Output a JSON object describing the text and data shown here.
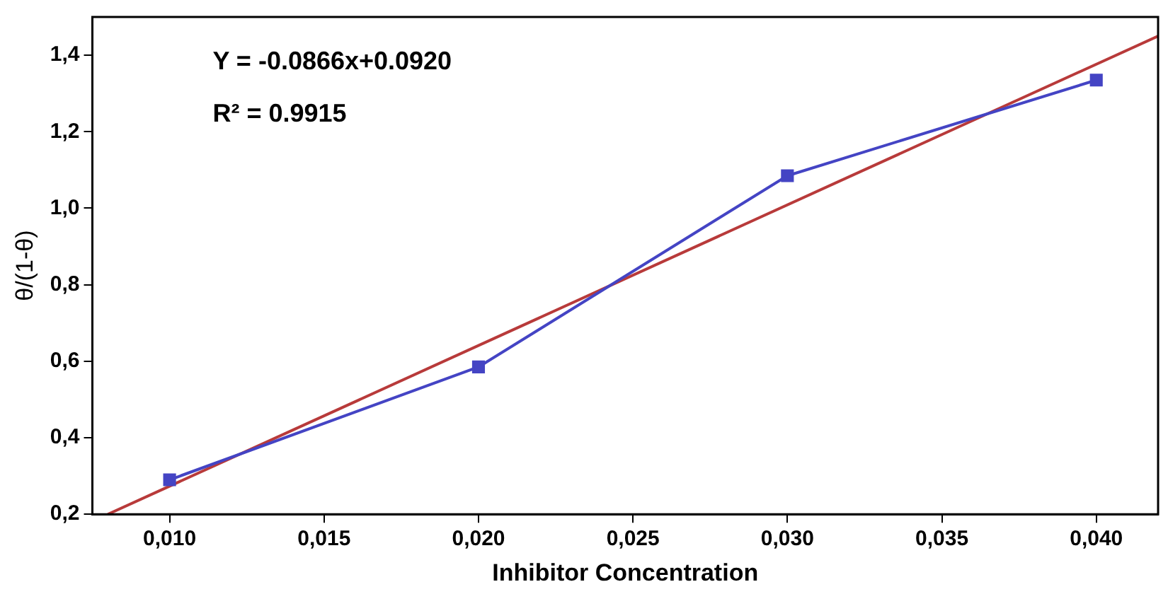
{
  "chart_data": {
    "type": "line",
    "xlabel": "Inhibitor Concentration",
    "ylabel": "θ/(1-θ)",
    "annotations": [
      "Y = -0.0866x+0.0920",
      "R² = 0.9915"
    ],
    "xlim": [
      0.0075,
      0.042
    ],
    "ylim": [
      0.2,
      1.5
    ],
    "xticks": [
      {
        "value": 0.01,
        "label": "0,010"
      },
      {
        "value": 0.015,
        "label": "0,015"
      },
      {
        "value": 0.02,
        "label": "0,020"
      },
      {
        "value": 0.025,
        "label": "0,025"
      },
      {
        "value": 0.03,
        "label": "0,030"
      },
      {
        "value": 0.035,
        "label": "0,035"
      },
      {
        "value": 0.04,
        "label": "0,040"
      }
    ],
    "yticks": [
      {
        "value": 0.2,
        "label": "0,2"
      },
      {
        "value": 0.4,
        "label": "0,4"
      },
      {
        "value": 0.6,
        "label": "0,6"
      },
      {
        "value": 0.8,
        "label": "0,8"
      },
      {
        "value": 1.0,
        "label": "1,0"
      },
      {
        "value": 1.2,
        "label": "1,2"
      },
      {
        "value": 1.4,
        "label": "1,4"
      }
    ],
    "grid": false,
    "legend": false,
    "series": [
      {
        "type": "line",
        "color": "#4444c4",
        "marker": "square",
        "x": [
          0.01,
          0.02,
          0.03,
          0.04
        ],
        "values": [
          0.29,
          0.585,
          1.085,
          1.335
        ]
      },
      {
        "type": "line",
        "color": "#b83a3a",
        "marker": "none",
        "x": [
          0.008,
          0.042
        ],
        "values": [
          0.2,
          1.45
        ]
      }
    ]
  }
}
